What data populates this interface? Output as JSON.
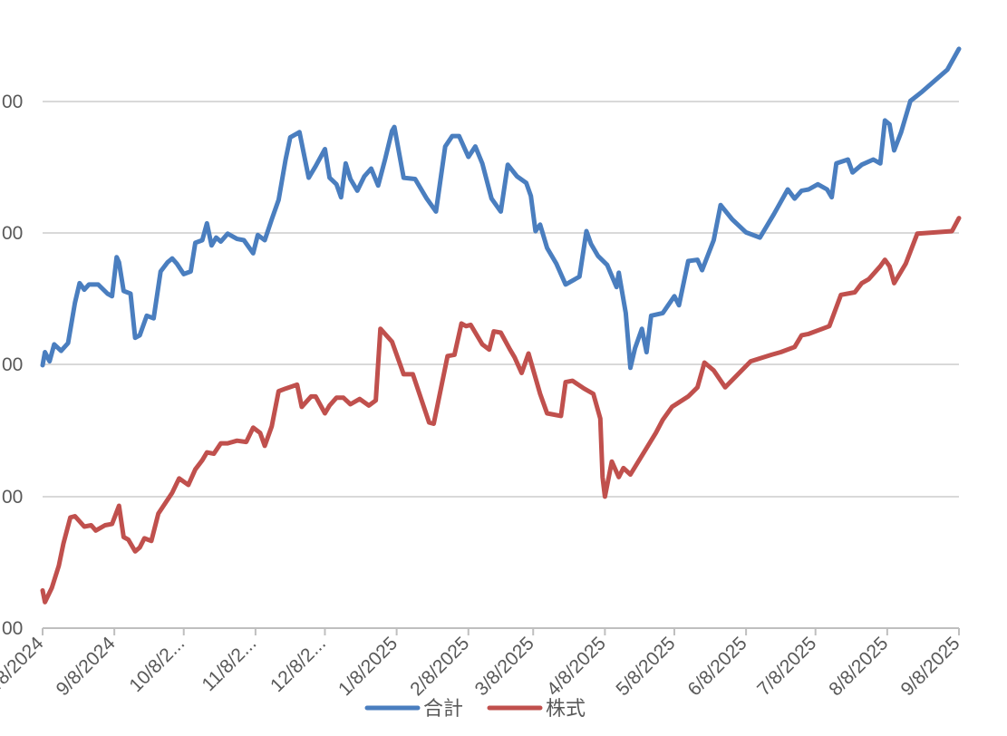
{
  "chart_data": {
    "type": "line",
    "title": "",
    "xlabel": "",
    "ylabel": "",
    "x_ticks": [
      "8/8/2024",
      "9/8/2024",
      "10/8/2...",
      "11/8/2...",
      "12/8/2...",
      "1/8/2025",
      "2/8/2025",
      "3/8/2025",
      "4/8/2025",
      "5/8/2025",
      "6/8/2025",
      "7/8/2025",
      "8/8/2025",
      "9/8/2025"
    ],
    "y_ticks": [
      "00",
      "00",
      "00",
      "00",
      "00"
    ],
    "grid": true,
    "legend": "bottom",
    "series": [
      {
        "name": "合計",
        "color": "#4a7ebf",
        "points": [
          [
            "2024-08-08",
            202
          ],
          [
            "2024-08-09",
            212
          ],
          [
            "2024-08-11",
            205
          ],
          [
            "2024-08-13",
            218
          ],
          [
            "2024-08-16",
            213
          ],
          [
            "2024-08-19",
            219
          ],
          [
            "2024-08-22",
            250
          ],
          [
            "2024-08-24",
            265
          ],
          [
            "2024-08-26",
            260
          ],
          [
            "2024-08-28",
            264
          ],
          [
            "2024-09-01",
            264
          ],
          [
            "2024-09-05",
            257
          ],
          [
            "2024-09-07",
            255
          ],
          [
            "2024-09-09",
            285
          ],
          [
            "2024-09-10",
            281
          ],
          [
            "2024-09-12",
            259
          ],
          [
            "2024-09-15",
            257
          ],
          [
            "2024-09-17",
            223
          ],
          [
            "2024-09-19",
            225
          ],
          [
            "2024-09-22",
            240
          ],
          [
            "2024-09-25",
            238
          ],
          [
            "2024-09-28",
            274
          ],
          [
            "2024-10-01",
            281
          ],
          [
            "2024-10-03",
            284
          ],
          [
            "2024-10-05",
            280
          ],
          [
            "2024-10-08",
            272
          ],
          [
            "2024-10-11",
            274
          ],
          [
            "2024-10-13",
            296
          ],
          [
            "2024-10-16",
            298
          ],
          [
            "2024-10-18",
            311
          ],
          [
            "2024-10-20",
            294
          ],
          [
            "2024-10-22",
            300
          ],
          [
            "2024-10-24",
            297
          ],
          [
            "2024-10-27",
            303
          ],
          [
            "2024-10-31",
            299
          ],
          [
            "2024-11-03",
            298
          ],
          [
            "2024-11-07",
            288
          ],
          [
            "2024-11-09",
            302
          ],
          [
            "2024-11-12",
            298
          ],
          [
            "2024-11-15",
            314
          ],
          [
            "2024-11-18",
            329
          ],
          [
            "2024-11-21",
            360
          ],
          [
            "2024-11-23",
            377
          ],
          [
            "2024-11-27",
            381
          ],
          [
            "2024-12-01",
            346
          ],
          [
            "2024-12-04",
            355
          ],
          [
            "2024-12-08",
            368
          ],
          [
            "2024-12-10",
            346
          ],
          [
            "2024-12-13",
            341
          ],
          [
            "2024-12-15",
            331
          ],
          [
            "2024-12-17",
            357
          ],
          [
            "2024-12-19",
            345
          ],
          [
            "2024-12-22",
            336
          ],
          [
            "2024-12-25",
            347
          ],
          [
            "2024-12-28",
            353
          ],
          [
            "2024-12-31",
            340
          ],
          [
            "2025-01-03",
            360
          ],
          [
            "2025-01-06",
            382
          ],
          [
            "2025-01-07",
            385
          ],
          [
            "2025-01-11",
            346
          ],
          [
            "2025-01-16",
            345
          ],
          [
            "2025-01-21",
            330
          ],
          [
            "2025-01-25",
            320
          ],
          [
            "2025-01-29",
            370
          ],
          [
            "2025-02-01",
            378
          ],
          [
            "2025-02-04",
            378
          ],
          [
            "2025-02-08",
            362
          ],
          [
            "2025-02-11",
            370
          ],
          [
            "2025-02-14",
            357
          ],
          [
            "2025-02-18",
            330
          ],
          [
            "2025-02-22",
            320
          ],
          [
            "2025-02-25",
            356
          ],
          [
            "2025-03-01",
            347
          ],
          [
            "2025-03-05",
            342
          ],
          [
            "2025-03-07",
            332
          ],
          [
            "2025-03-09",
            305
          ],
          [
            "2025-03-11",
            310
          ],
          [
            "2025-03-14",
            292
          ],
          [
            "2025-03-18",
            280
          ],
          [
            "2025-03-22",
            264
          ],
          [
            "2025-03-28",
            270
          ],
          [
            "2025-03-31",
            305
          ],
          [
            "2025-04-02",
            295
          ],
          [
            "2025-04-05",
            286
          ],
          [
            "2025-04-09",
            279
          ],
          [
            "2025-04-13",
            262
          ],
          [
            "2025-04-14",
            273
          ],
          [
            "2025-04-17",
            242
          ],
          [
            "2025-04-19",
            200
          ],
          [
            "2025-04-21",
            215
          ],
          [
            "2025-04-24",
            230
          ],
          [
            "2025-04-26",
            212
          ],
          [
            "2025-04-28",
            240
          ],
          [
            "2025-05-03",
            242
          ],
          [
            "2025-05-08",
            255
          ],
          [
            "2025-05-10",
            248
          ],
          [
            "2025-05-14",
            282
          ],
          [
            "2025-05-18",
            283
          ],
          [
            "2025-05-20",
            275
          ],
          [
            "2025-05-25",
            298
          ],
          [
            "2025-05-28",
            325
          ],
          [
            "2025-06-02",
            314
          ],
          [
            "2025-06-08",
            304
          ],
          [
            "2025-06-14",
            300
          ],
          [
            "2025-06-20",
            318
          ],
          [
            "2025-06-26",
            337
          ],
          [
            "2025-06-29",
            330
          ],
          [
            "2025-07-02",
            336
          ],
          [
            "2025-07-05",
            337
          ],
          [
            "2025-07-09",
            341
          ],
          [
            "2025-07-13",
            337
          ],
          [
            "2025-07-15",
            331
          ],
          [
            "2025-07-17",
            357
          ],
          [
            "2025-07-22",
            360
          ],
          [
            "2025-07-24",
            350
          ],
          [
            "2025-07-28",
            356
          ],
          [
            "2025-08-02",
            360
          ],
          [
            "2025-08-05",
            357
          ],
          [
            "2025-08-07",
            390
          ],
          [
            "2025-08-09",
            387
          ],
          [
            "2025-08-11",
            367
          ],
          [
            "2025-08-14",
            381
          ],
          [
            "2025-08-18",
            405
          ],
          [
            "2025-08-23",
            412
          ],
          [
            "2025-09-03",
            429
          ],
          [
            "2025-09-08",
            445
          ]
        ]
      },
      {
        "name": "株式",
        "color": "#c0504d",
        "points": [
          [
            "2024-08-08",
            29
          ],
          [
            "2024-08-09",
            20
          ],
          [
            "2024-08-12",
            31
          ],
          [
            "2024-08-15",
            48
          ],
          [
            "2024-08-17",
            65
          ],
          [
            "2024-08-20",
            85
          ],
          [
            "2024-08-22",
            86
          ],
          [
            "2024-08-26",
            78
          ],
          [
            "2024-08-29",
            79
          ],
          [
            "2024-08-31",
            75
          ],
          [
            "2024-09-04",
            79
          ],
          [
            "2024-09-07",
            80
          ],
          [
            "2024-09-10",
            94
          ],
          [
            "2024-09-12",
            70
          ],
          [
            "2024-09-14",
            68
          ],
          [
            "2024-09-17",
            59
          ],
          [
            "2024-09-19",
            62
          ],
          [
            "2024-09-21",
            69
          ],
          [
            "2024-09-24",
            67
          ],
          [
            "2024-09-27",
            88
          ],
          [
            "2024-10-03",
            104
          ],
          [
            "2024-10-06",
            115
          ],
          [
            "2024-10-10",
            110
          ],
          [
            "2024-10-13",
            122
          ],
          [
            "2024-10-16",
            129
          ],
          [
            "2024-10-18",
            135
          ],
          [
            "2024-10-21",
            134
          ],
          [
            "2024-10-24",
            142
          ],
          [
            "2024-10-27",
            142
          ],
          [
            "2024-10-31",
            144
          ],
          [
            "2024-11-04",
            143
          ],
          [
            "2024-11-07",
            154
          ],
          [
            "2024-11-10",
            150
          ],
          [
            "2024-11-12",
            140
          ],
          [
            "2024-11-15",
            155
          ],
          [
            "2024-11-18",
            182
          ],
          [
            "2024-11-21",
            184
          ],
          [
            "2024-11-26",
            187
          ],
          [
            "2024-11-28",
            170
          ],
          [
            "2024-12-02",
            178
          ],
          [
            "2024-12-04",
            178
          ],
          [
            "2024-12-08",
            165
          ],
          [
            "2024-12-10",
            171
          ],
          [
            "2024-12-13",
            177
          ],
          [
            "2024-12-16",
            177
          ],
          [
            "2024-12-19",
            172
          ],
          [
            "2024-12-23",
            176
          ],
          [
            "2024-12-27",
            171
          ],
          [
            "2024-12-30",
            175
          ],
          [
            "2025-01-01",
            230
          ],
          [
            "2025-01-06",
            220
          ],
          [
            "2025-01-11",
            195
          ],
          [
            "2025-01-15",
            195
          ],
          [
            "2025-01-22",
            158
          ],
          [
            "2025-01-24",
            157
          ],
          [
            "2025-01-30",
            209
          ],
          [
            "2025-02-02",
            210
          ],
          [
            "2025-02-05",
            234
          ],
          [
            "2025-02-07",
            232
          ],
          [
            "2025-02-09",
            233
          ],
          [
            "2025-02-14",
            218
          ],
          [
            "2025-02-17",
            214
          ],
          [
            "2025-02-19",
            228
          ],
          [
            "2025-02-22",
            227
          ],
          [
            "2025-02-26",
            214
          ],
          [
            "2025-02-28",
            208
          ],
          [
            "2025-03-03",
            196
          ],
          [
            "2025-03-06",
            211
          ],
          [
            "2025-03-11",
            180
          ],
          [
            "2025-03-14",
            165
          ],
          [
            "2025-03-20",
            163
          ],
          [
            "2025-03-22",
            189
          ],
          [
            "2025-03-25",
            190
          ],
          [
            "2025-03-30",
            184
          ],
          [
            "2025-04-03",
            180
          ],
          [
            "2025-04-06",
            161
          ],
          [
            "2025-04-07",
            116
          ],
          [
            "2025-04-08",
            101
          ],
          [
            "2025-04-11",
            128
          ],
          [
            "2025-04-14",
            116
          ],
          [
            "2025-04-16",
            123
          ],
          [
            "2025-04-19",
            118
          ],
          [
            "2025-04-30",
            150
          ],
          [
            "2025-05-03",
            160
          ],
          [
            "2025-05-07",
            170
          ],
          [
            "2025-05-14",
            178
          ],
          [
            "2025-05-18",
            185
          ],
          [
            "2025-05-21",
            204
          ],
          [
            "2025-05-25",
            198
          ],
          [
            "2025-05-30",
            185
          ],
          [
            "2025-06-10",
            205
          ],
          [
            "2025-06-19",
            210
          ],
          [
            "2025-06-23",
            212
          ],
          [
            "2025-06-29",
            216
          ],
          [
            "2025-07-02",
            225
          ],
          [
            "2025-07-05",
            226
          ],
          [
            "2025-07-11",
            230
          ],
          [
            "2025-07-14",
            232
          ],
          [
            "2025-07-19",
            256
          ],
          [
            "2025-07-25",
            258
          ],
          [
            "2025-07-28",
            265
          ],
          [
            "2025-07-31",
            268
          ],
          [
            "2025-08-05",
            278
          ],
          [
            "2025-08-07",
            283
          ],
          [
            "2025-08-09",
            278
          ],
          [
            "2025-08-11",
            265
          ],
          [
            "2025-08-16",
            280
          ],
          [
            "2025-08-21",
            303
          ],
          [
            "2025-09-05",
            305
          ],
          [
            "2025-09-08",
            315
          ]
        ]
      }
    ]
  }
}
